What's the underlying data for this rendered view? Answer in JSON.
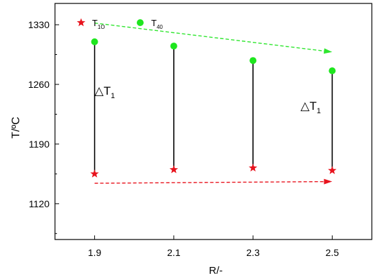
{
  "chart_data": {
    "type": "scatter",
    "title": "",
    "xlabel": "R/-",
    "ylabel": "T/ºC",
    "xlim": [
      1.8,
      2.6
    ],
    "ylim": [
      1078,
      1355
    ],
    "x_ticks": [
      1.9,
      2.1,
      2.3,
      2.5
    ],
    "x_tick_labels": [
      "1.9",
      "2.1",
      "2.3",
      "2.5"
    ],
    "y_ticks": [
      1120,
      1190,
      1260,
      1330
    ],
    "y_tick_labels": [
      "1120",
      "1190",
      "1260",
      "1330"
    ],
    "grid": false,
    "legend_position": "top-left",
    "series": [
      {
        "name": "T",
        "name_subscript": "1O",
        "marker": "star",
        "color": "#e8141e",
        "x": [
          1.9,
          2.1,
          2.3,
          2.5
        ],
        "y": [
          1155,
          1160,
          1162,
          1159
        ]
      },
      {
        "name": "T",
        "name_subscript": "40",
        "marker": "circle",
        "color": "#1ee61e",
        "x": [
          1.9,
          2.1,
          2.3,
          2.5
        ],
        "y": [
          1310,
          1305,
          1288,
          1276
        ]
      }
    ],
    "connectors": {
      "color": "#000000",
      "from_series": 0,
      "to_series": 1
    },
    "trend_arrows": [
      {
        "color": "#2ee62e",
        "style": "dashed",
        "x": [
          1.9,
          2.5
        ],
        "y": [
          1332,
          1298
        ]
      },
      {
        "color": "#e8141e",
        "style": "dashed",
        "x": [
          1.9,
          2.5
        ],
        "y": [
          1144,
          1146
        ]
      }
    ],
    "annotations": [
      {
        "text": "△T",
        "subscript": "1",
        "x": 1.9,
        "y": 1248
      },
      {
        "text": "△T",
        "subscript": "1",
        "x": 2.42,
        "y": 1230
      }
    ]
  }
}
